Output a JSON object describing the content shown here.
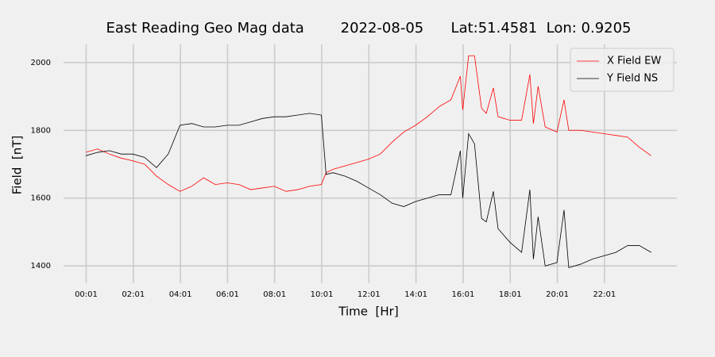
{
  "chart_data": {
    "type": "line",
    "title": "East Reading Geo Mag data        2022-08-05      Lat:51.4581  Lon: 0.9205",
    "xlabel": "Time  [Hr]",
    "ylabel": "Field  [nT]",
    "x": [
      0,
      0.5,
      1,
      1.5,
      2,
      2.5,
      3,
      3.5,
      4,
      4.5,
      5,
      5.5,
      6,
      6.5,
      7,
      7.5,
      8,
      8.5,
      9,
      9.5,
      10,
      10.2,
      10.5,
      11,
      11.5,
      12,
      12.5,
      13,
      13.5,
      14,
      14.5,
      15,
      15.5,
      15.9,
      16,
      16.25,
      16.5,
      16.8,
      17,
      17.3,
      17.5,
      18,
      18.5,
      18.85,
      19,
      19.2,
      19.5,
      20,
      20.3,
      20.5,
      21,
      21.5,
      22,
      22.5,
      23,
      23.5,
      24
    ],
    "series": [
      {
        "name": "X Field EW",
        "color": "#ff0000",
        "values": [
          1735,
          1745,
          1730,
          1718,
          1710,
          1700,
          1665,
          1640,
          1620,
          1635,
          1660,
          1640,
          1645,
          1640,
          1625,
          1630,
          1635,
          1620,
          1625,
          1635,
          1640,
          1675,
          1685,
          1695,
          1705,
          1715,
          1730,
          1765,
          1795,
          1815,
          1840,
          1870,
          1890,
          1960,
          1860,
          2020,
          2020,
          1865,
          1850,
          1925,
          1840,
          1830,
          1830,
          1965,
          1820,
          1930,
          1810,
          1795,
          1890,
          1800,
          1800,
          1795,
          1790,
          1785,
          1780,
          1750,
          1725
        ]
      },
      {
        "name": "Y Field NS",
        "color": "#000000",
        "values": [
          1725,
          1735,
          1740,
          1730,
          1730,
          1720,
          1690,
          1730,
          1815,
          1820,
          1810,
          1810,
          1815,
          1815,
          1825,
          1835,
          1840,
          1840,
          1845,
          1850,
          1845,
          1670,
          1675,
          1665,
          1650,
          1630,
          1610,
          1585,
          1575,
          1590,
          1600,
          1610,
          1610,
          1740,
          1600,
          1790,
          1760,
          1540,
          1530,
          1620,
          1510,
          1470,
          1440,
          1625,
          1420,
          1545,
          1400,
          1410,
          1565,
          1395,
          1405,
          1420,
          1430,
          1440,
          1460,
          1460,
          1440
        ]
      }
    ],
    "xlim": [
      -0.944,
      25.09
    ],
    "xticks": [
      {
        "value": 0.0167,
        "label": "00:01"
      },
      {
        "value": 2.0167,
        "label": "02:01"
      },
      {
        "value": 4.0167,
        "label": "04:01"
      },
      {
        "value": 6.0167,
        "label": "06:01"
      },
      {
        "value": 8.0167,
        "label": "08:01"
      },
      {
        "value": 10.0167,
        "label": "10:01"
      },
      {
        "value": 12.0167,
        "label": "12:01"
      },
      {
        "value": 14.0167,
        "label": "14:01"
      },
      {
        "value": 16.0167,
        "label": "16:01"
      },
      {
        "value": 18.0167,
        "label": "18:01"
      },
      {
        "value": 20.0167,
        "label": "20:01"
      },
      {
        "value": 22.0167,
        "label": "22:01"
      }
    ],
    "ylim": [
      1349,
      2044
    ],
    "yticks": [
      1400,
      1600,
      1800,
      2000
    ],
    "grid": true,
    "legend": "upper right"
  }
}
